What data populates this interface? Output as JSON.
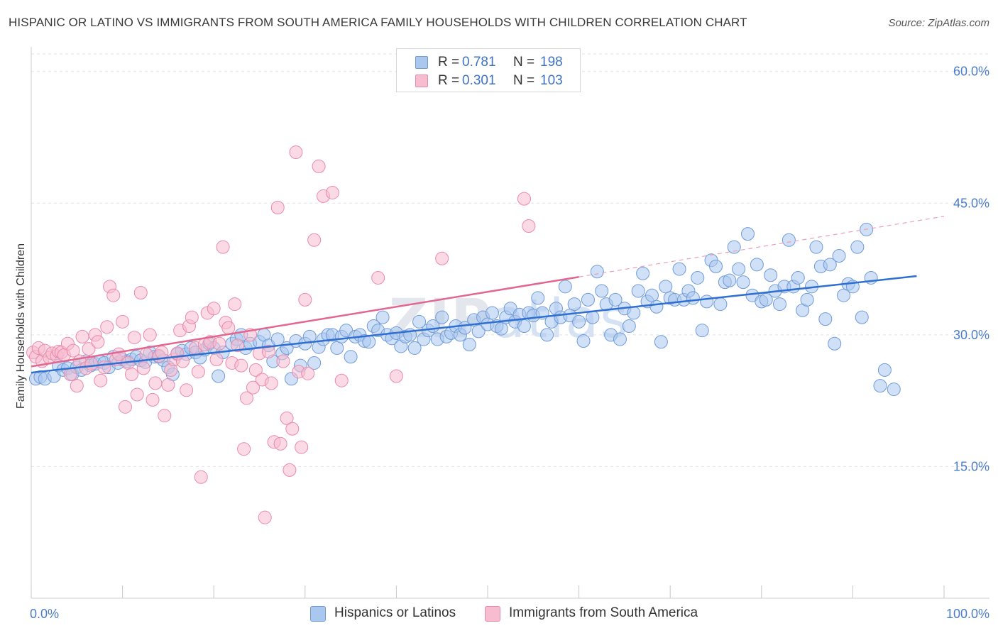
{
  "title": "HISPANIC OR LATINO VS IMMIGRANTS FROM SOUTH AMERICA FAMILY HOUSEHOLDS WITH CHILDREN CORRELATION CHART",
  "source": "Source: ZipAtlas.com",
  "watermark": {
    "zip": "ZIP",
    "atlas": "atlas"
  },
  "stats": [
    {
      "r_label": "R =",
      "r_value": "0.781",
      "n_label": "N =",
      "n_value": "198",
      "color": "#a9c7ef",
      "border": "#6f9bd8"
    },
    {
      "r_label": "R =",
      "r_value": "0.301",
      "n_label": "N =",
      "n_value": "103",
      "color": "#f7bcd0",
      "border": "#e98aab"
    }
  ],
  "legend": [
    {
      "label": "Hispanics or Latinos",
      "color": "#a9c7ef",
      "border": "#6f9bd8"
    },
    {
      "label": "Immigrants from South America",
      "color": "#f7bcd0",
      "border": "#e98aab"
    }
  ],
  "chart_data": {
    "type": "scatter",
    "title": "HISPANIC OR LATINO VS IMMIGRANTS FROM SOUTH AMERICA FAMILY HOUSEHOLDS WITH CHILDREN CORRELATION CHART",
    "xlabel": "",
    "ylabel": "Family Households with Children",
    "xlim": [
      0,
      100
    ],
    "ylim": [
      0,
      62
    ],
    "x_tick_labels": [
      {
        "value": 0,
        "label": "0.0%"
      },
      {
        "value": 100,
        "label": "100.0%"
      }
    ],
    "y_ticks": [
      {
        "value": 15,
        "label": "15.0%"
      },
      {
        "value": 30,
        "label": "30.0%"
      },
      {
        "value": 45,
        "label": "45.0%"
      },
      {
        "value": 60,
        "label": "60.0%"
      }
    ],
    "grid": true,
    "legend_position": "bottom",
    "series": [
      {
        "name": "Hispanics or Latinos",
        "color": "#6f9bd8",
        "fill": "#a9c7ef",
        "trend": {
          "x0": 0,
          "y0": 25.7,
          "x1": 97,
          "y1": 36.7
        },
        "points": [
          [
            0.5,
            25
          ],
          [
            1,
            25.2
          ],
          [
            1.5,
            25
          ],
          [
            2.5,
            25.3
          ],
          [
            3,
            26.5
          ],
          [
            3.5,
            26
          ],
          [
            4,
            26.2
          ],
          [
            4.5,
            25.5
          ],
          [
            5,
            26.3
          ],
          [
            5.5,
            26
          ],
          [
            6,
            27
          ],
          [
            6.5,
            26.5
          ],
          [
            7,
            26.7
          ],
          [
            7.5,
            27
          ],
          [
            8,
            26.8
          ],
          [
            8.5,
            26.3
          ],
          [
            9,
            27.5
          ],
          [
            9.5,
            26.8
          ],
          [
            10,
            27.2
          ],
          [
            10.5,
            27
          ],
          [
            11,
            27.2
          ],
          [
            11.5,
            27.5
          ],
          [
            12,
            27.1
          ],
          [
            12.5,
            26.9
          ],
          [
            13,
            28
          ],
          [
            13.5,
            27.5
          ],
          [
            14,
            27.5
          ],
          [
            14.5,
            27.1
          ],
          [
            15,
            26.3
          ],
          [
            15.5,
            25.5
          ],
          [
            16,
            27.8
          ],
          [
            16.5,
            28.2
          ],
          [
            17,
            27.8
          ],
          [
            17.5,
            28.5
          ],
          [
            18,
            28
          ],
          [
            18.5,
            27.4
          ],
          [
            19,
            28.3
          ],
          [
            19.5,
            29
          ],
          [
            20,
            28.5
          ],
          [
            20.5,
            25.3
          ],
          [
            21,
            28
          ],
          [
            22,
            29
          ],
          [
            22.5,
            29.5
          ],
          [
            23,
            30
          ],
          [
            23.5,
            28.5
          ],
          [
            24,
            29
          ],
          [
            25,
            29.2
          ],
          [
            25.5,
            30
          ],
          [
            26,
            28.8
          ],
          [
            26.5,
            27
          ],
          [
            27,
            29.5
          ],
          [
            27.5,
            27.9
          ],
          [
            28,
            28.5
          ],
          [
            28.5,
            25
          ],
          [
            29,
            29.3
          ],
          [
            29.5,
            26.5
          ],
          [
            30,
            29
          ],
          [
            30.5,
            29.8
          ],
          [
            31,
            26.8
          ],
          [
            31.5,
            28.6
          ],
          [
            32,
            29.5
          ],
          [
            32.5,
            30
          ],
          [
            33,
            30
          ],
          [
            33.5,
            28.5
          ],
          [
            34,
            29.8
          ],
          [
            34.5,
            30.5
          ],
          [
            35,
            27.5
          ],
          [
            35.5,
            29.8
          ],
          [
            36,
            30
          ],
          [
            36.5,
            29.3
          ],
          [
            37,
            29.2
          ],
          [
            37.5,
            31
          ],
          [
            38,
            30.5
          ],
          [
            38.5,
            32
          ],
          [
            39,
            30
          ],
          [
            39.5,
            29.6
          ],
          [
            40,
            30.2
          ],
          [
            40.5,
            28.7
          ],
          [
            41,
            29.8
          ],
          [
            41.5,
            30
          ],
          [
            42,
            28.5
          ],
          [
            42.5,
            31.5
          ],
          [
            43,
            29.5
          ],
          [
            43.5,
            30.5
          ],
          [
            44,
            31
          ],
          [
            44.5,
            29.5
          ],
          [
            45,
            32
          ],
          [
            45.5,
            29.8
          ],
          [
            46,
            30.2
          ],
          [
            46.5,
            31
          ],
          [
            47,
            30
          ],
          [
            47.5,
            30.8
          ],
          [
            48,
            28.9
          ],
          [
            48.5,
            31.7
          ],
          [
            49,
            30.4
          ],
          [
            49.5,
            32
          ],
          [
            50,
            31.2
          ],
          [
            50.5,
            32.5
          ],
          [
            51,
            31
          ],
          [
            51.5,
            30.7
          ],
          [
            52,
            32
          ],
          [
            52.5,
            33
          ],
          [
            53,
            31.5
          ],
          [
            53.5,
            32.3
          ],
          [
            54,
            31
          ],
          [
            54.5,
            32.5
          ],
          [
            55,
            32.2
          ],
          [
            55.5,
            34.2
          ],
          [
            56,
            32.5
          ],
          [
            56.5,
            30
          ],
          [
            57,
            31.5
          ],
          [
            57.5,
            33
          ],
          [
            58,
            32
          ],
          [
            58.5,
            35.5
          ],
          [
            59,
            32.2
          ],
          [
            59.5,
            33.5
          ],
          [
            60,
            31.5
          ],
          [
            60.5,
            29.3
          ],
          [
            61,
            34
          ],
          [
            61.5,
            32
          ],
          [
            62,
            37.2
          ],
          [
            62.5,
            35
          ],
          [
            63,
            33.5
          ],
          [
            63.5,
            30
          ],
          [
            64,
            34
          ],
          [
            64.5,
            29.5
          ],
          [
            65,
            33
          ],
          [
            65.5,
            31
          ],
          [
            66,
            32.5
          ],
          [
            66.5,
            35
          ],
          [
            67,
            37
          ],
          [
            67.5,
            33.8
          ],
          [
            68,
            34.5
          ],
          [
            68.5,
            33.2
          ],
          [
            69,
            29.2
          ],
          [
            69.5,
            35.5
          ],
          [
            70,
            34.2
          ],
          [
            70.5,
            34
          ],
          [
            71,
            37.5
          ],
          [
            71.5,
            34
          ],
          [
            72,
            35
          ],
          [
            72.5,
            34.2
          ],
          [
            73,
            36.5
          ],
          [
            73.5,
            30.5
          ],
          [
            74,
            33.8
          ],
          [
            74.5,
            38.5
          ],
          [
            75,
            37.8
          ],
          [
            75.5,
            33.5
          ],
          [
            76,
            36
          ],
          [
            76.5,
            36.2
          ],
          [
            77,
            40
          ],
          [
            77.5,
            37.5
          ],
          [
            78,
            36
          ],
          [
            78.5,
            41.5
          ],
          [
            79,
            34.5
          ],
          [
            79.5,
            38
          ],
          [
            80,
            33.8
          ],
          [
            80.5,
            34
          ],
          [
            81,
            36.8
          ],
          [
            81.5,
            35
          ],
          [
            82,
            33.5
          ],
          [
            82.5,
            35.5
          ],
          [
            83,
            40.8
          ],
          [
            83.5,
            35.5
          ],
          [
            84,
            36.5
          ],
          [
            84.5,
            32.8
          ],
          [
            85,
            34
          ],
          [
            85.5,
            35.5
          ],
          [
            86,
            40
          ],
          [
            86.5,
            37.8
          ],
          [
            87,
            31.8
          ],
          [
            87.5,
            38
          ],
          [
            88,
            29
          ],
          [
            88.5,
            39
          ],
          [
            89,
            34.5
          ],
          [
            89.5,
            35.8
          ],
          [
            90,
            35.5
          ],
          [
            90.5,
            40
          ],
          [
            91,
            32
          ],
          [
            91.5,
            42
          ],
          [
            92,
            36.5
          ],
          [
            93,
            24.2
          ],
          [
            93.5,
            26
          ],
          [
            94.5,
            23.8
          ]
        ]
      },
      {
        "name": "Immigrants from South America",
        "color": "#e98aab",
        "fill": "#f7bcd0",
        "trend": {
          "x0": 0,
          "y0": 26.4,
          "x1": 60,
          "y1": 36.6
        },
        "trend_extension": {
          "x0": 60,
          "y0": 36.6,
          "x1": 100,
          "y1": 43.5
        },
        "points": [
          [
            0.2,
            28
          ],
          [
            0.5,
            27.5
          ],
          [
            0.8,
            28.5
          ],
          [
            1.2,
            27
          ],
          [
            1.5,
            28.2
          ],
          [
            2,
            27.4
          ],
          [
            2.3,
            27.9
          ],
          [
            2.8,
            27.6
          ],
          [
            3,
            28.1
          ],
          [
            3.3,
            28
          ],
          [
            3.6,
            27.7
          ],
          [
            4,
            29
          ],
          [
            4.3,
            25.5
          ],
          [
            4.6,
            28.2
          ],
          [
            5,
            24.2
          ],
          [
            5.3,
            27
          ],
          [
            5.6,
            29.8
          ],
          [
            6,
            26.2
          ],
          [
            6.3,
            28.4
          ],
          [
            6.6,
            26.7
          ],
          [
            7,
            30
          ],
          [
            7.3,
            29.2
          ],
          [
            7.6,
            24.8
          ],
          [
            8,
            26.3
          ],
          [
            8.3,
            30.9
          ],
          [
            8.6,
            35.5
          ],
          [
            9,
            34.5
          ],
          [
            9.3,
            27.2
          ],
          [
            9.6,
            27.8
          ],
          [
            10,
            31.5
          ],
          [
            10.3,
            21.8
          ],
          [
            10.6,
            26.8
          ],
          [
            11,
            25.5
          ],
          [
            11.3,
            29.7
          ],
          [
            11.6,
            23.2
          ],
          [
            12,
            34.8
          ],
          [
            12.3,
            26.2
          ],
          [
            12.6,
            27.8
          ],
          [
            13,
            30
          ],
          [
            13.3,
            22.6
          ],
          [
            13.6,
            24.5
          ],
          [
            14,
            27.6
          ],
          [
            14.3,
            28
          ],
          [
            14.6,
            20.8
          ],
          [
            15,
            24.3
          ],
          [
            15.3,
            26
          ],
          [
            15.6,
            27.2
          ],
          [
            16,
            27.9
          ],
          [
            16.3,
            30.5
          ],
          [
            16.6,
            27
          ],
          [
            17,
            23.7
          ],
          [
            17.3,
            31
          ],
          [
            17.6,
            32
          ],
          [
            18,
            28.5
          ],
          [
            18.3,
            25.8
          ],
          [
            18.6,
            13.8
          ],
          [
            19,
            28.9
          ],
          [
            19.3,
            32.5
          ],
          [
            19.6,
            29.2
          ],
          [
            20,
            33
          ],
          [
            20.3,
            27.2
          ],
          [
            20.6,
            29
          ],
          [
            21,
            40
          ],
          [
            21.3,
            31.4
          ],
          [
            21.6,
            30.8
          ],
          [
            22,
            26.8
          ],
          [
            22.3,
            33.5
          ],
          [
            22.6,
            28.8
          ],
          [
            23,
            26.5
          ],
          [
            23.3,
            17
          ],
          [
            23.6,
            22.8
          ],
          [
            24,
            30
          ],
          [
            24.3,
            24
          ],
          [
            24.6,
            26
          ],
          [
            25,
            27.9
          ],
          [
            25.3,
            24.9
          ],
          [
            25.6,
            9.2
          ],
          [
            26,
            28.1
          ],
          [
            26.3,
            24.5
          ],
          [
            26.6,
            17.8
          ],
          [
            27,
            44.5
          ],
          [
            27.3,
            17.6
          ],
          [
            27.6,
            27
          ],
          [
            28,
            20.5
          ],
          [
            28.3,
            14.6
          ],
          [
            28.6,
            19.3
          ],
          [
            29,
            50.8
          ],
          [
            29.3,
            25.8
          ],
          [
            29.6,
            17.2
          ],
          [
            30,
            34
          ],
          [
            30.3,
            25.6
          ],
          [
            31,
            40.8
          ],
          [
            31.5,
            49.2
          ],
          [
            32,
            45.8
          ],
          [
            33,
            46.2
          ],
          [
            34,
            24.8
          ],
          [
            38,
            36.5
          ],
          [
            40,
            25.3
          ],
          [
            45,
            38.7
          ],
          [
            54,
            45.5
          ],
          [
            54.5,
            42.4
          ]
        ]
      }
    ]
  }
}
